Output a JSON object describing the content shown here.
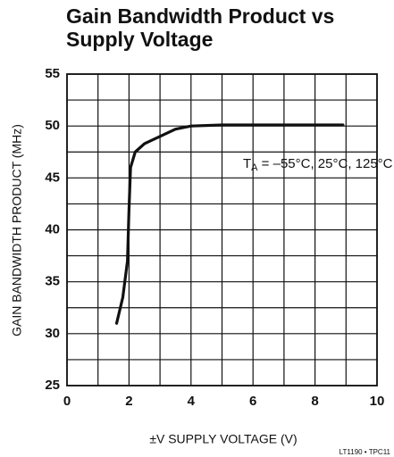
{
  "chart_data": {
    "type": "line",
    "title": [
      "Gain Bandwidth Product vs",
      "Supply Voltage"
    ],
    "xlabel": "±V SUPPLY VOLTAGE (V)",
    "ylabel": "GAIN BANDWIDTH PRODUCT (MHz)",
    "annotation": [
      "T",
      "A",
      " = –55°C, 25°C, 125°C"
    ],
    "note": "LT1190 • TPC11",
    "x": [
      1.6,
      1.8,
      1.95,
      2.0,
      2.05,
      2.2,
      2.5,
      3.0,
      3.5,
      4.0,
      5.0,
      6.0,
      7.0,
      8.0,
      8.9
    ],
    "series": [
      {
        "color": "#111111",
        "values": [
          31,
          33.5,
          37,
          42,
          46,
          47.5,
          48.3,
          49,
          49.7,
          50,
          50.1,
          50.1,
          50.1,
          50.1,
          50.1
        ]
      }
    ],
    "xlim": [
      0,
      10
    ],
    "xticks": [
      0,
      2,
      4,
      6,
      8,
      10
    ],
    "ylim": [
      25,
      55
    ],
    "yticks": [
      25,
      30,
      35,
      40,
      45,
      50,
      55
    ],
    "grid": true
  }
}
